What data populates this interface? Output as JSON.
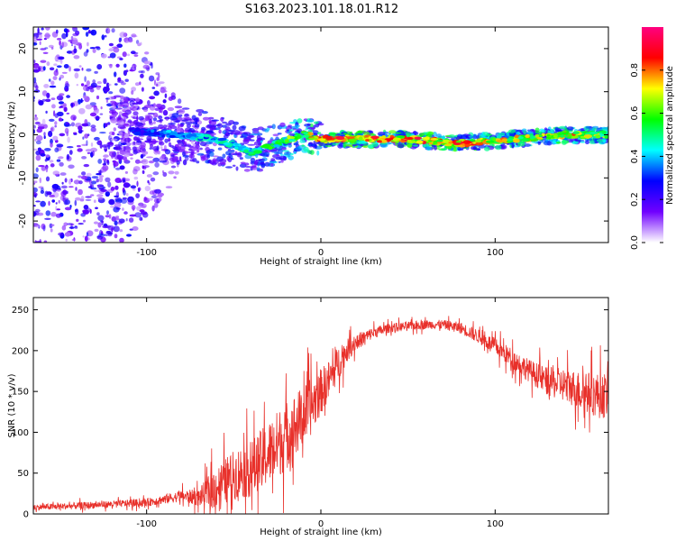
{
  "title": "S163.2023.101.18.01.R12",
  "chart_data": [
    {
      "type": "heatmap",
      "xlabel": "Height of straight line (km)",
      "ylabel": "Frequency (Hz)",
      "xlim": [
        -165,
        165
      ],
      "ylim": [
        -25,
        25
      ],
      "xticks": [
        -100,
        0,
        100
      ],
      "xtick_labels": [
        "-100",
        "0",
        "100"
      ],
      "yticks": [
        -20,
        -10,
        0,
        10,
        20
      ],
      "ytick_labels": [
        "-20",
        "-10",
        "0",
        "10",
        "20"
      ],
      "colorbar": {
        "label": "Normalized spectral amplitude",
        "range": [
          0,
          1
        ],
        "ticks": [
          0.0,
          0.2,
          0.4,
          0.6,
          0.8
        ],
        "tick_labels": [
          "0.0",
          "0.2",
          "0.4",
          "0.6",
          "0.8"
        ],
        "colors": [
          "#ffffff",
          "#7000ff",
          "#0000ff",
          "#00ffff",
          "#00ff00",
          "#ffff00",
          "#ff0000",
          "#ff0080"
        ]
      },
      "ridge": [
        {
          "x": -165,
          "f": 4,
          "amp": 0.15
        },
        {
          "x": -110,
          "f": 1,
          "amp": 0.3
        },
        {
          "x": -80,
          "f": 0,
          "amp": 0.45
        },
        {
          "x": -60,
          "f": -1,
          "amp": 0.5
        },
        {
          "x": -40,
          "f": -4,
          "amp": 0.55
        },
        {
          "x": -25,
          "f": -2,
          "amp": 0.6
        },
        {
          "x": -10,
          "f": 0,
          "amp": 0.75
        },
        {
          "x": 0,
          "f": -1,
          "amp": 0.85
        },
        {
          "x": 20,
          "f": -1,
          "amp": 0.95
        },
        {
          "x": 50,
          "f": -1,
          "amp": 0.9
        },
        {
          "x": 80,
          "f": -2,
          "amp": 0.9
        },
        {
          "x": 110,
          "f": -1,
          "amp": 0.75
        },
        {
          "x": 140,
          "f": 0,
          "amp": 0.85
        },
        {
          "x": 165,
          "f": 0,
          "amp": 0.7
        }
      ]
    },
    {
      "type": "line",
      "xlabel": "Height of straight line (km)",
      "ylabel": "SNR (10 * v/v)",
      "xlim": [
        -165,
        165
      ],
      "ylim": [
        0,
        265
      ],
      "xticks": [
        -100,
        0,
        100
      ],
      "xtick_labels": [
        "-100",
        "0",
        "100"
      ],
      "yticks": [
        0,
        50,
        100,
        150,
        200,
        250
      ],
      "ytick_labels": [
        "0",
        "50",
        "100",
        "150",
        "200",
        "250"
      ],
      "color": "#e8302a",
      "series": [
        {
          "x": [
            -165,
            -140,
            -120,
            -100,
            -90,
            -80,
            -70,
            -62,
            -55,
            -48,
            -40,
            -32,
            -25,
            -18,
            -12,
            -6,
            0,
            5,
            10,
            15,
            20,
            30,
            40,
            50,
            60,
            70,
            80,
            90,
            100,
            110,
            120,
            130,
            140,
            150,
            160,
            165
          ],
          "values": [
            8,
            10,
            12,
            14,
            18,
            22,
            20,
            30,
            40,
            50,
            55,
            70,
            85,
            100,
            115,
            130,
            150,
            165,
            185,
            200,
            210,
            222,
            228,
            230,
            232,
            232,
            228,
            218,
            205,
            190,
            175,
            162,
            158,
            150,
            145,
            145
          ],
          "noise": [
            5,
            6,
            6,
            7,
            8,
            10,
            15,
            35,
            40,
            45,
            50,
            55,
            60,
            60,
            55,
            50,
            40,
            35,
            30,
            20,
            15,
            10,
            8,
            8,
            8,
            8,
            10,
            12,
            15,
            18,
            20,
            25,
            30,
            35,
            40,
            40
          ]
        }
      ]
    }
  ]
}
